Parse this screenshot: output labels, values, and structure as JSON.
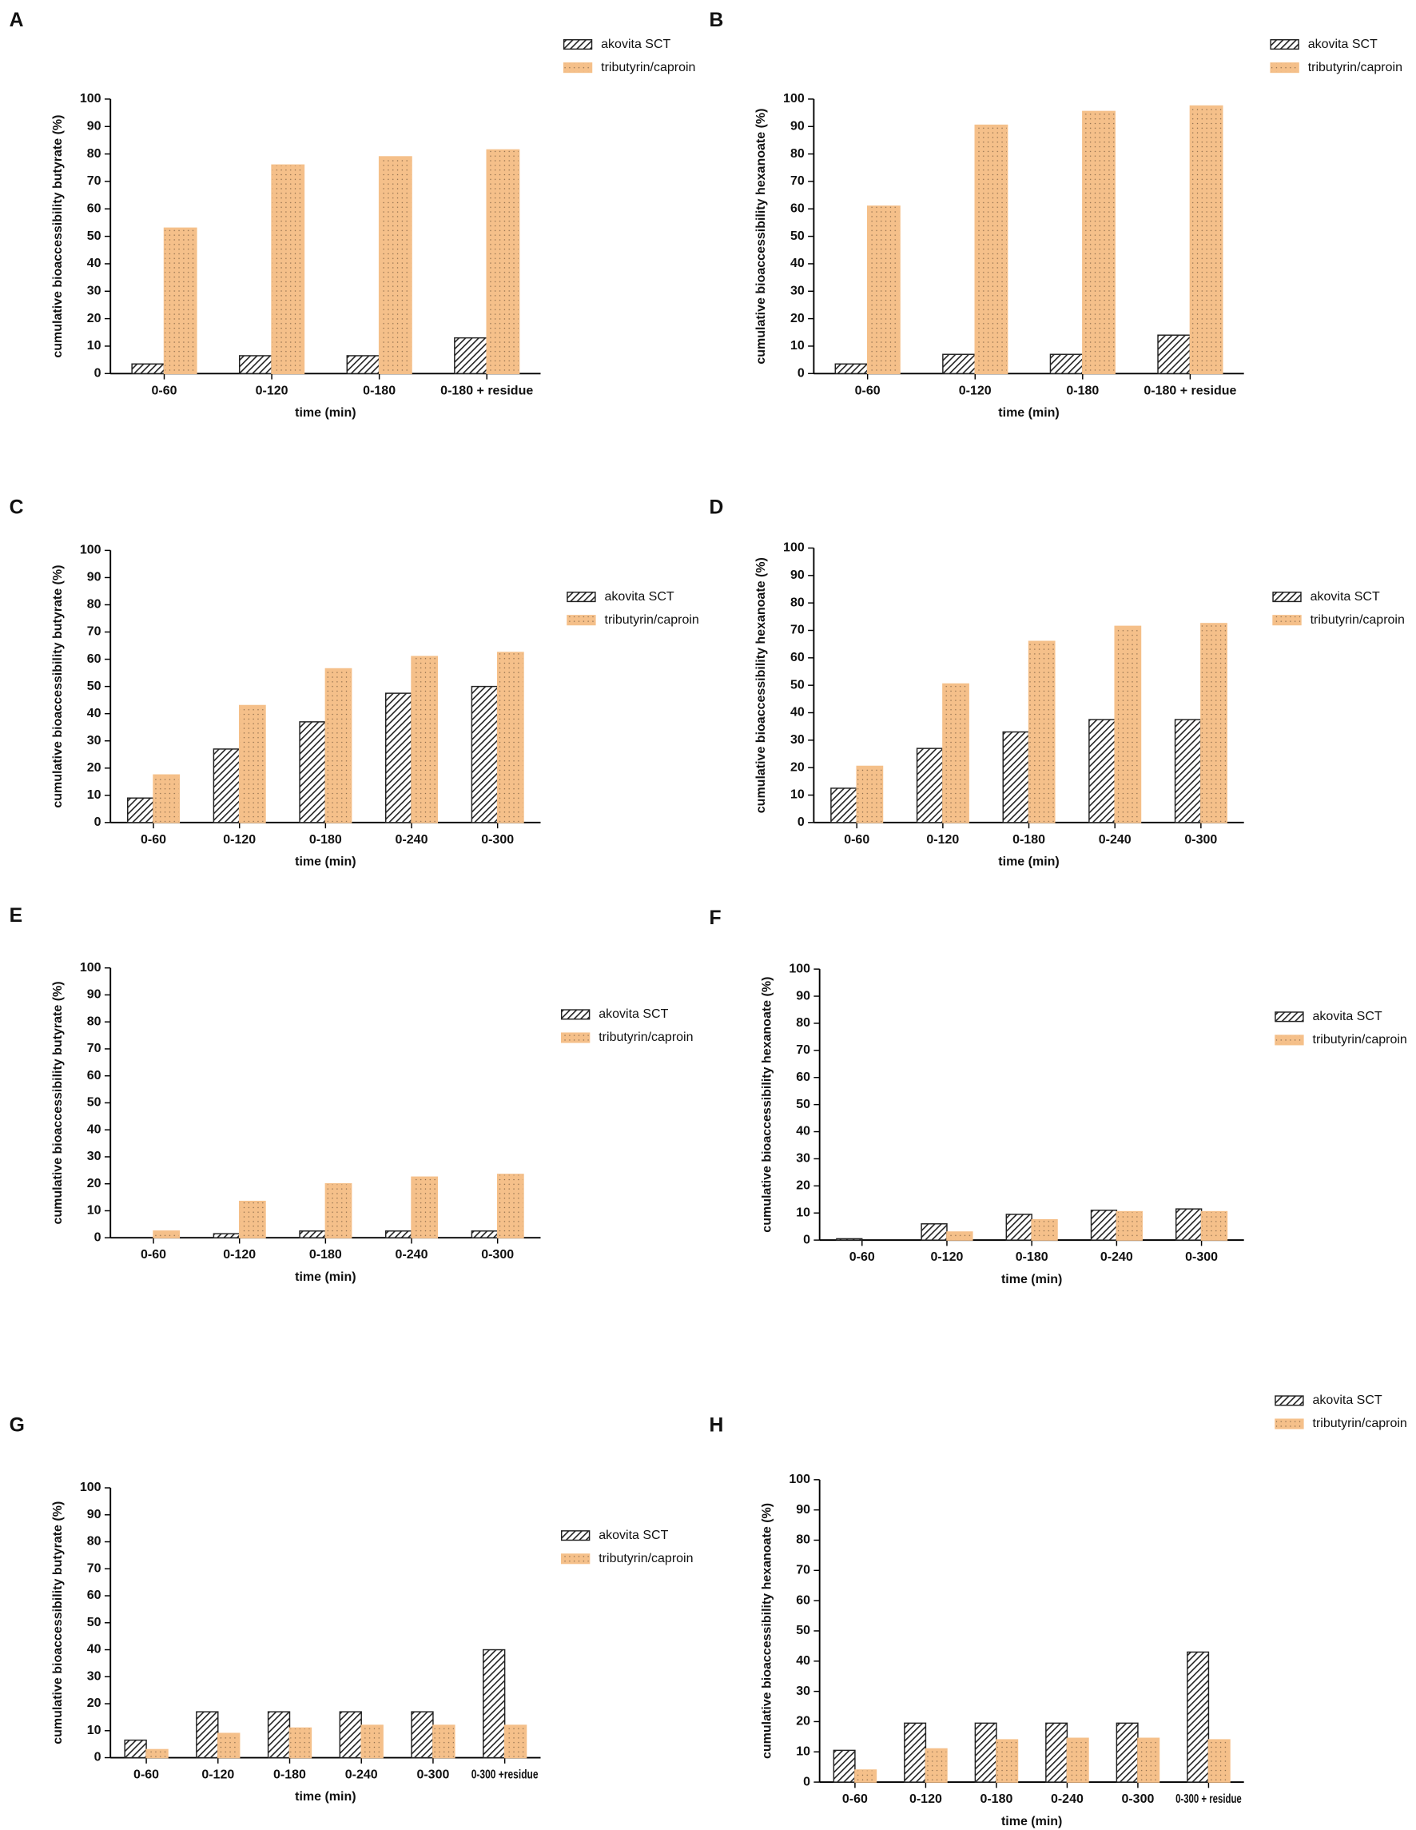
{
  "chart_data": [
    {
      "panel": "A",
      "type": "bar",
      "y_label": "cumulative bioaccessibility butyrate (%)",
      "x_label": "time (min)",
      "categories": [
        "0-60",
        "0-120",
        "0-180",
        "0-180 + residue"
      ],
      "series": [
        {
          "name": "akovita SCT",
          "color": "#222222",
          "values": [
            3.5,
            6.5,
            6.5,
            13
          ]
        },
        {
          "name": "tributyrin/caproin",
          "color": "#f5c08a",
          "values": [
            53,
            76,
            79,
            81.5
          ]
        }
      ],
      "ylim": [
        0,
        100
      ],
      "yticks": [
        0,
        10,
        20,
        30,
        40,
        50,
        60,
        70,
        80,
        90,
        100
      ]
    },
    {
      "panel": "B",
      "type": "bar",
      "y_label": "cumulative bioaccessibility hexanoate (%)",
      "x_label": "time (min)",
      "categories": [
        "0-60",
        "0-120",
        "0-180",
        "0-180 + residue"
      ],
      "series": [
        {
          "name": "akovita SCT",
          "color": "#222222",
          "values": [
            3.5,
            7,
            7,
            14
          ]
        },
        {
          "name": "tributyrin/caproin",
          "color": "#f5c08a",
          "values": [
            61,
            90.5,
            95.5,
            97.5
          ]
        }
      ],
      "ylim": [
        0,
        100
      ],
      "yticks": [
        0,
        10,
        20,
        30,
        40,
        50,
        60,
        70,
        80,
        90,
        100
      ]
    },
    {
      "panel": "C",
      "type": "bar",
      "y_label": "cumulative bioaccessibility butyrate (%)",
      "x_label": "time (min)",
      "categories": [
        "0-60",
        "0-120",
        "0-180",
        "0-240",
        "0-300"
      ],
      "series": [
        {
          "name": "akovita SCT",
          "color": "#222222",
          "values": [
            9,
            27,
            37,
            47.5,
            50
          ]
        },
        {
          "name": "tributyrin/caproin",
          "color": "#f5c08a",
          "values": [
            17.5,
            43,
            56.5,
            61,
            62.5
          ]
        }
      ],
      "ylim": [
        0,
        100
      ],
      "yticks": [
        0,
        10,
        20,
        30,
        40,
        50,
        60,
        70,
        80,
        90,
        100
      ]
    },
    {
      "panel": "D",
      "type": "bar",
      "y_label": "cumulative bioaccessibility hexanoate (%)",
      "x_label": "time (min)",
      "categories": [
        "0-60",
        "0-120",
        "0-180",
        "0-240",
        "0-300"
      ],
      "series": [
        {
          "name": "akovita SCT",
          "color": "#222222",
          "values": [
            12.5,
            27,
            33,
            37.5,
            37.5
          ]
        },
        {
          "name": "tributyrin/caproin",
          "color": "#f5c08a",
          "values": [
            20.5,
            50.5,
            66,
            71.5,
            72.5
          ]
        }
      ],
      "ylim": [
        0,
        100
      ],
      "yticks": [
        0,
        10,
        20,
        30,
        40,
        50,
        60,
        70,
        80,
        90,
        100
      ]
    },
    {
      "panel": "E",
      "type": "bar",
      "y_label": "cumulative bioaccessibility butyrate (%)",
      "x_label": "time (min)",
      "categories": [
        "0-60",
        "0-120",
        "0-180",
        "0-240",
        "0-300"
      ],
      "series": [
        {
          "name": "akovita SCT",
          "color": "#222222",
          "values": [
            0,
            1.5,
            2.5,
            2.5,
            2.5
          ]
        },
        {
          "name": "tributyrin/caproin",
          "color": "#f5c08a",
          "values": [
            2.5,
            13.5,
            20,
            22.5,
            23.5
          ]
        }
      ],
      "ylim": [
        0,
        100
      ],
      "yticks": [
        0,
        10,
        20,
        30,
        40,
        50,
        60,
        70,
        80,
        90,
        100
      ]
    },
    {
      "panel": "F",
      "type": "bar",
      "y_label": "cumulative bioaccessibility hexanoate (%)",
      "x_label": "time (min)",
      "categories": [
        "0-60",
        "0-120",
        "0-180",
        "0-240",
        "0-300"
      ],
      "series": [
        {
          "name": "akovita SCT",
          "color": "#222222",
          "values": [
            0.5,
            6,
            9.5,
            11,
            11.5
          ]
        },
        {
          "name": "tributyrin/caproin",
          "color": "#f5c08a",
          "values": [
            0,
            3,
            7.5,
            10.5,
            10.5
          ]
        }
      ],
      "ylim": [
        0,
        100
      ],
      "yticks": [
        0,
        10,
        20,
        30,
        40,
        50,
        60,
        70,
        80,
        90,
        100
      ]
    },
    {
      "panel": "G",
      "type": "bar",
      "y_label": "cumulative bioaccessibility butyrate (%)",
      "x_label": "time (min)",
      "categories": [
        "0-60",
        "0-120",
        "0-180",
        "0-240",
        "0-300",
        "0-300 +residue"
      ],
      "series": [
        {
          "name": "akovita SCT",
          "color": "#222222",
          "values": [
            6.5,
            17,
            17,
            17,
            17,
            40
          ]
        },
        {
          "name": "tributyrin/caproin",
          "color": "#f5c08a",
          "values": [
            3,
            9,
            11,
            12,
            12,
            12
          ]
        }
      ],
      "ylim": [
        0,
        100
      ],
      "yticks": [
        0,
        10,
        20,
        30,
        40,
        50,
        60,
        70,
        80,
        90,
        100
      ]
    },
    {
      "panel": "H",
      "type": "bar",
      "y_label": "cumulative bioaccessibility hexanoate (%)",
      "x_label": "time (min)",
      "categories": [
        "0-60",
        "0-120",
        "0-180",
        "0-240",
        "0-300",
        "0-300 + residue"
      ],
      "series": [
        {
          "name": "akovita SCT",
          "color": "#222222",
          "values": [
            10.5,
            19.5,
            19.5,
            19.5,
            19.5,
            43
          ]
        },
        {
          "name": "tributyrin/caproin",
          "color": "#f5c08a",
          "values": [
            4,
            11,
            14,
            14.5,
            14.5,
            14
          ]
        }
      ],
      "ylim": [
        0,
        100
      ],
      "yticks": [
        0,
        10,
        20,
        30,
        40,
        50,
        60,
        70,
        80,
        90,
        100
      ]
    }
  ]
}
